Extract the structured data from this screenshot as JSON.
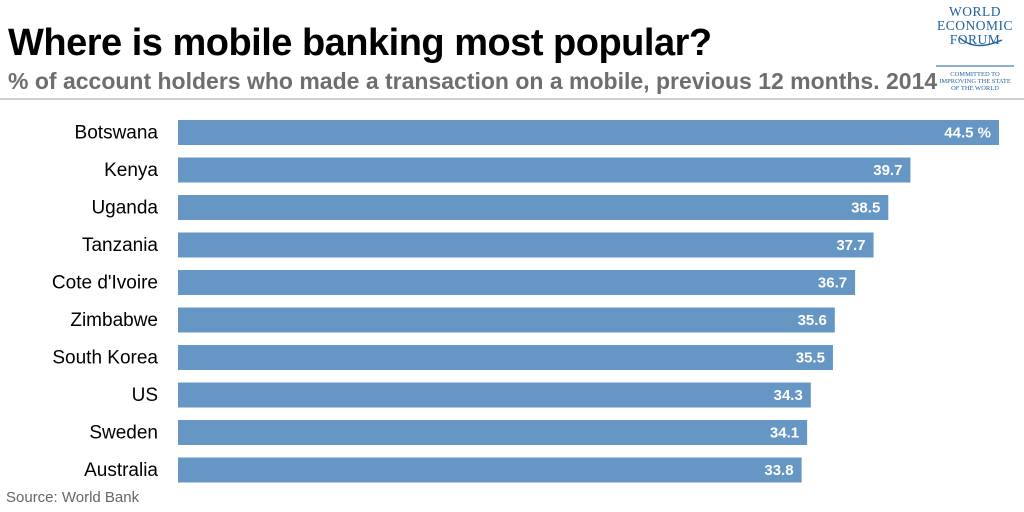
{
  "header": {
    "title": "Where is mobile banking most popular?",
    "subtitle": "% of account holders who made a transaction on a mobile, previous 12 months. 2014"
  },
  "logo": {
    "line1": "WORLD",
    "line2": "ECONOMIC",
    "line3": "FORUM",
    "tagline1": "COMMITTED TO",
    "tagline2": "IMPROVING THE STATE",
    "tagline3": "OF THE WORLD",
    "color": "#1f5f9f"
  },
  "footer": {
    "source": "Source: World Bank"
  },
  "chart_data": {
    "type": "bar",
    "orientation": "horizontal",
    "categories": [
      "Botswana",
      "Kenya",
      "Uganda",
      "Tanzania",
      "Cote d'Ivoire",
      "Zimbabwe",
      "South Korea",
      "US",
      "Sweden",
      "Australia"
    ],
    "values": [
      44.5,
      39.7,
      38.5,
      37.7,
      36.7,
      35.6,
      35.5,
      34.3,
      34.1,
      33.8
    ],
    "data_labels": [
      "44.5 %",
      "39.7",
      "38.5",
      "37.7",
      "36.7",
      "35.6",
      "35.5",
      "34.3",
      "34.1",
      "33.8"
    ],
    "bar_color": "#6596c4",
    "label_color": "#ffffff",
    "grid": false
  }
}
